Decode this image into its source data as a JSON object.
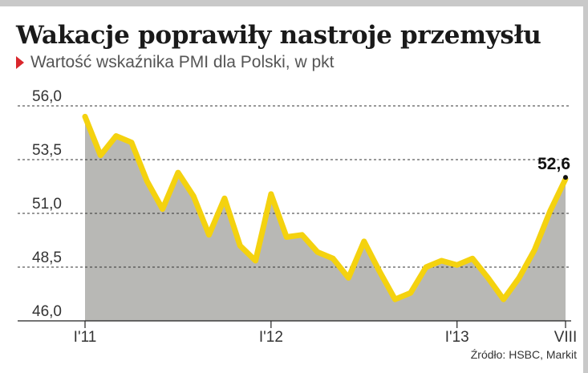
{
  "title": "Wakacje poprawiły nastroje przemysłu",
  "subtitle": "Wartość wskaźnika PMI dla Polski, w pkt",
  "source": "Źródło: HSBC, Markit",
  "colors": {
    "line": "#f4d20f",
    "area": "#b8b8b5",
    "accent": "#d9262c",
    "grid": "#333333"
  },
  "chart_data": {
    "type": "area",
    "title": "Wakacje poprawiły nastroje przemysłu",
    "subtitle": "Wartość wskaźnika PMI dla Polski, w pkt",
    "x": [
      "2011-01",
      "2011-02",
      "2011-03",
      "2011-04",
      "2011-05",
      "2011-06",
      "2011-07",
      "2011-08",
      "2011-09",
      "2011-10",
      "2011-11",
      "2011-12",
      "2012-01",
      "2012-02",
      "2012-03",
      "2012-04",
      "2012-05",
      "2012-06",
      "2012-07",
      "2012-08",
      "2012-09",
      "2012-10",
      "2012-11",
      "2012-12",
      "2013-01",
      "2013-02",
      "2013-03",
      "2013-04",
      "2013-05",
      "2013-06",
      "2013-07",
      "2013-08"
    ],
    "series": [
      {
        "values": [
          55.5,
          53.7,
          54.6,
          54.3,
          52.5,
          51.2,
          52.9,
          51.8,
          50.0,
          51.7,
          49.5,
          48.8,
          51.9,
          49.9,
          50.0,
          49.2,
          48.9,
          48.0,
          49.7,
          48.3,
          47.0,
          47.3,
          48.5,
          48.8,
          48.6,
          48.9,
          48.0,
          47.0,
          48.0,
          49.3,
          51.1,
          52.6
        ]
      }
    ],
    "x_tick_labels": [
      "I'11",
      "I'12",
      "I'13",
      "VIII"
    ],
    "y_ticks": [
      "46,0",
      "48,5",
      "51,0",
      "53,5",
      "56,0"
    ],
    "ylim": [
      46.0,
      56.0
    ],
    "grid": "horizontal dashed",
    "annotation": "52,6"
  }
}
